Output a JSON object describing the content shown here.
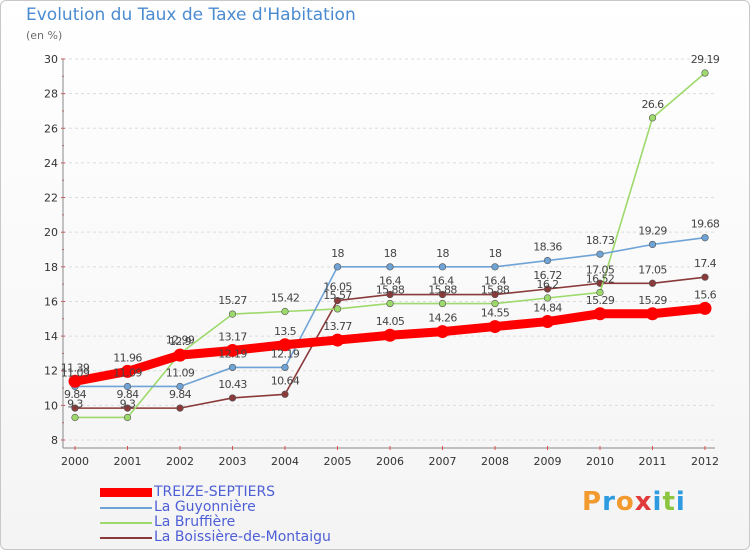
{
  "title": "Evolution du Taux de Taxe d'Habitation",
  "unit": "(en %)",
  "brand": {
    "text": "Proxiti",
    "colors": [
      "#f29a2e",
      "#2e9be0",
      "#f29a2e",
      "#e03a3a",
      "#2e9be0",
      "#8cc63f",
      "#2e9be0"
    ]
  },
  "chart_data": {
    "type": "line",
    "title": "Evolution du Taux de Taxe d'Habitation",
    "ylabel": "(en %)",
    "xlabel": "",
    "x": [
      "2000",
      "2001",
      "2002",
      "2003",
      "2004",
      "2005",
      "2006",
      "2007",
      "2008",
      "2009",
      "2010",
      "2011",
      "2012"
    ],
    "ylim": [
      8,
      30
    ],
    "yticks": [
      8,
      10,
      12,
      14,
      16,
      18,
      20,
      22,
      24,
      26,
      28,
      30
    ],
    "grid": "horizontal",
    "legend": "bottom-left",
    "series": [
      {
        "name": "TREIZE-SEPTIERS",
        "color": "#ff0000",
        "values": [
          11.39,
          11.96,
          12.9,
          13.17,
          13.5,
          13.77,
          14.05,
          14.26,
          14.55,
          14.84,
          15.29,
          15.29,
          15.6
        ],
        "labels": [
          "11.39",
          "11.96",
          "12.9",
          "13.17",
          "13.5",
          "13.77",
          "14.05",
          "14.26",
          "14.55",
          "14.84",
          "15.29",
          "15.29",
          "15.6"
        ]
      },
      {
        "name": "La Guyonnière",
        "color": "#6fa3d6",
        "values": [
          11.09,
          11.09,
          11.09,
          12.19,
          12.19,
          18,
          18,
          18,
          18,
          18.36,
          18.73,
          19.29,
          19.68
        ],
        "labels": [
          "11.09",
          "11.09",
          "11.09",
          "12.19",
          "12.19",
          "18",
          "18",
          "18",
          "18",
          "18.36",
          "18.73",
          "19.29",
          "19.68"
        ]
      },
      {
        "name": "La Bruffière",
        "color": "#9dd96b",
        "values": [
          9.3,
          9.3,
          12.99,
          15.27,
          15.42,
          15.57,
          15.88,
          15.88,
          15.88,
          16.2,
          16.52,
          26.6,
          29.19
        ],
        "labels": [
          "9.3",
          "9.3",
          "12.99",
          "15.27",
          "15.42",
          "15.57",
          "15.88",
          "15.88",
          "15.88",
          "16.2",
          "16.52",
          "26.6",
          "29.19"
        ]
      },
      {
        "name": "La Boissière-de-Montaigu",
        "color": "#8b3a3a",
        "values": [
          9.84,
          9.84,
          9.84,
          10.43,
          10.64,
          16.05,
          16.4,
          16.4,
          16.4,
          16.72,
          17.05,
          17.05,
          17.4
        ],
        "labels": [
          "9.84",
          "9.84",
          "9.84",
          "10.43",
          "10.64",
          "16.05",
          "16.4",
          "16.4",
          "16.4",
          "16.72",
          "17.05",
          "17.05",
          "17.4"
        ]
      }
    ]
  }
}
